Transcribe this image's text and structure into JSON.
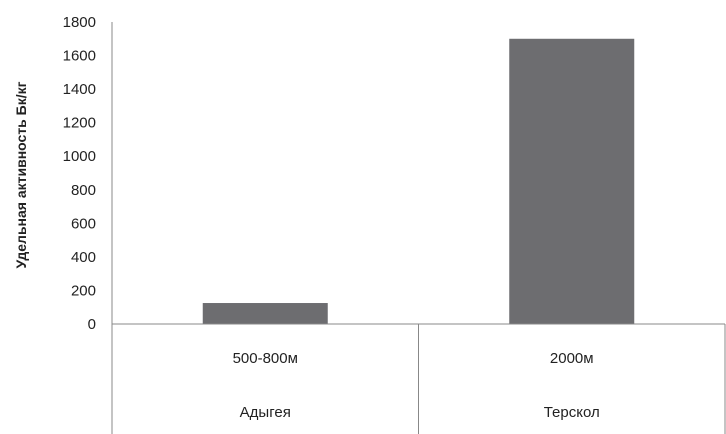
{
  "chart_data": {
    "type": "bar",
    "title": "",
    "xlabel": "",
    "ylabel": "Удельная активность Бк/кг",
    "ylim": [
      0,
      1800
    ],
    "yticks": [
      0,
      200,
      400,
      600,
      800,
      1000,
      1200,
      1400,
      1600,
      1800
    ],
    "grid": false,
    "legend": "none",
    "bar_color": "#6d6d70",
    "categories": [
      "500-800м",
      "2000м"
    ],
    "category_groups": [
      "Адыгея",
      "Терскол"
    ],
    "values": [
      125,
      1700
    ]
  }
}
